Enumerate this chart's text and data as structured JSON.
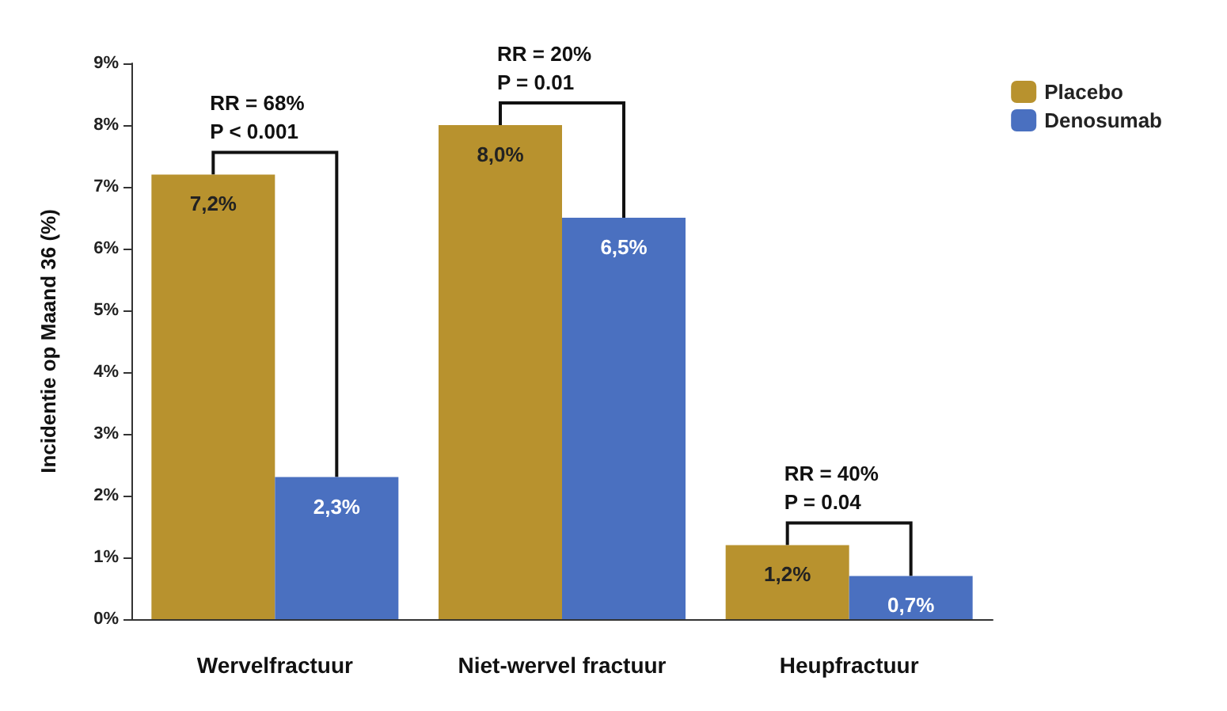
{
  "chart_data": {
    "type": "bar",
    "ylabel": "Incidentie op Maand 36 (%)",
    "categories": [
      "Wervelfractuur",
      "Niet-wervel fractuur",
      "Heupfractuur"
    ],
    "series": [
      {
        "name": "Placebo",
        "color": "#b8922e",
        "values": [
          7.2,
          8.0,
          1.2
        ],
        "value_labels": [
          "7,2%",
          "8,0%",
          "1,2%"
        ]
      },
      {
        "name": "Denosumab",
        "color": "#4a70c0",
        "values": [
          2.3,
          6.5,
          0.7
        ],
        "value_labels": [
          "2,3%",
          "6,5%",
          "0,7%"
        ]
      }
    ],
    "ylim": [
      0,
      9
    ],
    "yticks": [
      {
        "value": 0,
        "label": "0%"
      },
      {
        "value": 1,
        "label": "1%"
      },
      {
        "value": 2,
        "label": "2%"
      },
      {
        "value": 3,
        "label": "3%"
      },
      {
        "value": 4,
        "label": "4%"
      },
      {
        "value": 5,
        "label": "5%"
      },
      {
        "value": 6,
        "label": "6%"
      },
      {
        "value": 7,
        "label": "7%"
      },
      {
        "value": 8,
        "label": "8%"
      },
      {
        "value": 9,
        "label": "9%"
      }
    ],
    "grid": false,
    "legend": "top right",
    "annotations": [
      "RR = 68%\nP < 0.001",
      "RR = 20%\nP = 0.01",
      "RR = 40%\nP = 0.04"
    ]
  }
}
